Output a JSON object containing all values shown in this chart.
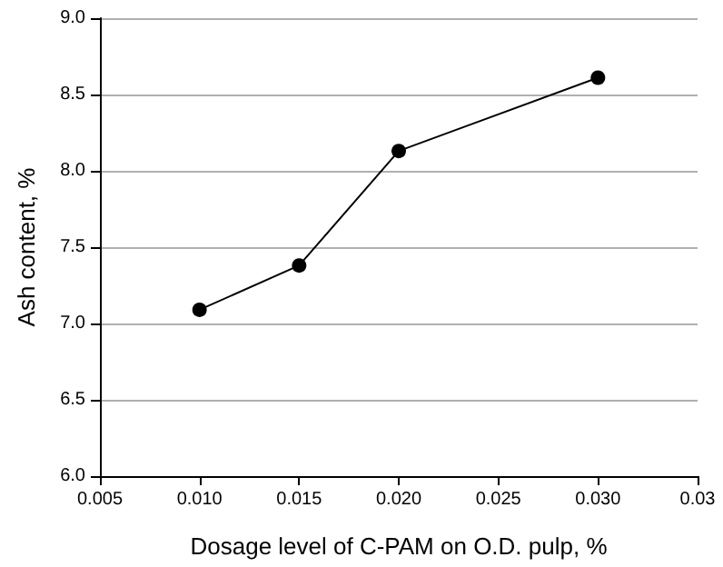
{
  "chart_data": {
    "type": "line",
    "xlabel": "Dosage level of C-PAM on O.D. pulp, %",
    "ylabel": "Ash content, %",
    "x": [
      0.01,
      0.015,
      0.02,
      0.03
    ],
    "series": [
      {
        "color": "#000000",
        "values": [
          7.09,
          7.38,
          8.13,
          8.61
        ]
      }
    ],
    "xlim": [
      0.005,
      0.035
    ],
    "xticks": [
      {
        "value": 0.005,
        "label": "0.005"
      },
      {
        "value": 0.01,
        "label": "0.010"
      },
      {
        "value": 0.015,
        "label": "0.015"
      },
      {
        "value": 0.02,
        "label": "0.020"
      },
      {
        "value": 0.025,
        "label": "0.025"
      },
      {
        "value": 0.03,
        "label": "0.030"
      },
      {
        "value": 0.035,
        "label": "0.03"
      }
    ],
    "ylim": [
      6.0,
      9.0
    ],
    "yticks": [
      {
        "value": 6,
        "label": "6.0"
      },
      {
        "value": 6.5,
        "label": "6.5"
      },
      {
        "value": 7,
        "label": "7.0"
      },
      {
        "value": 7.5,
        "label": "7.5"
      },
      {
        "value": 8,
        "label": "8.0"
      },
      {
        "value": 8.5,
        "label": "8.5"
      },
      {
        "value": 9,
        "label": "9.0"
      }
    ],
    "grid": "y",
    "marker": "circle",
    "line_style": "solid"
  }
}
